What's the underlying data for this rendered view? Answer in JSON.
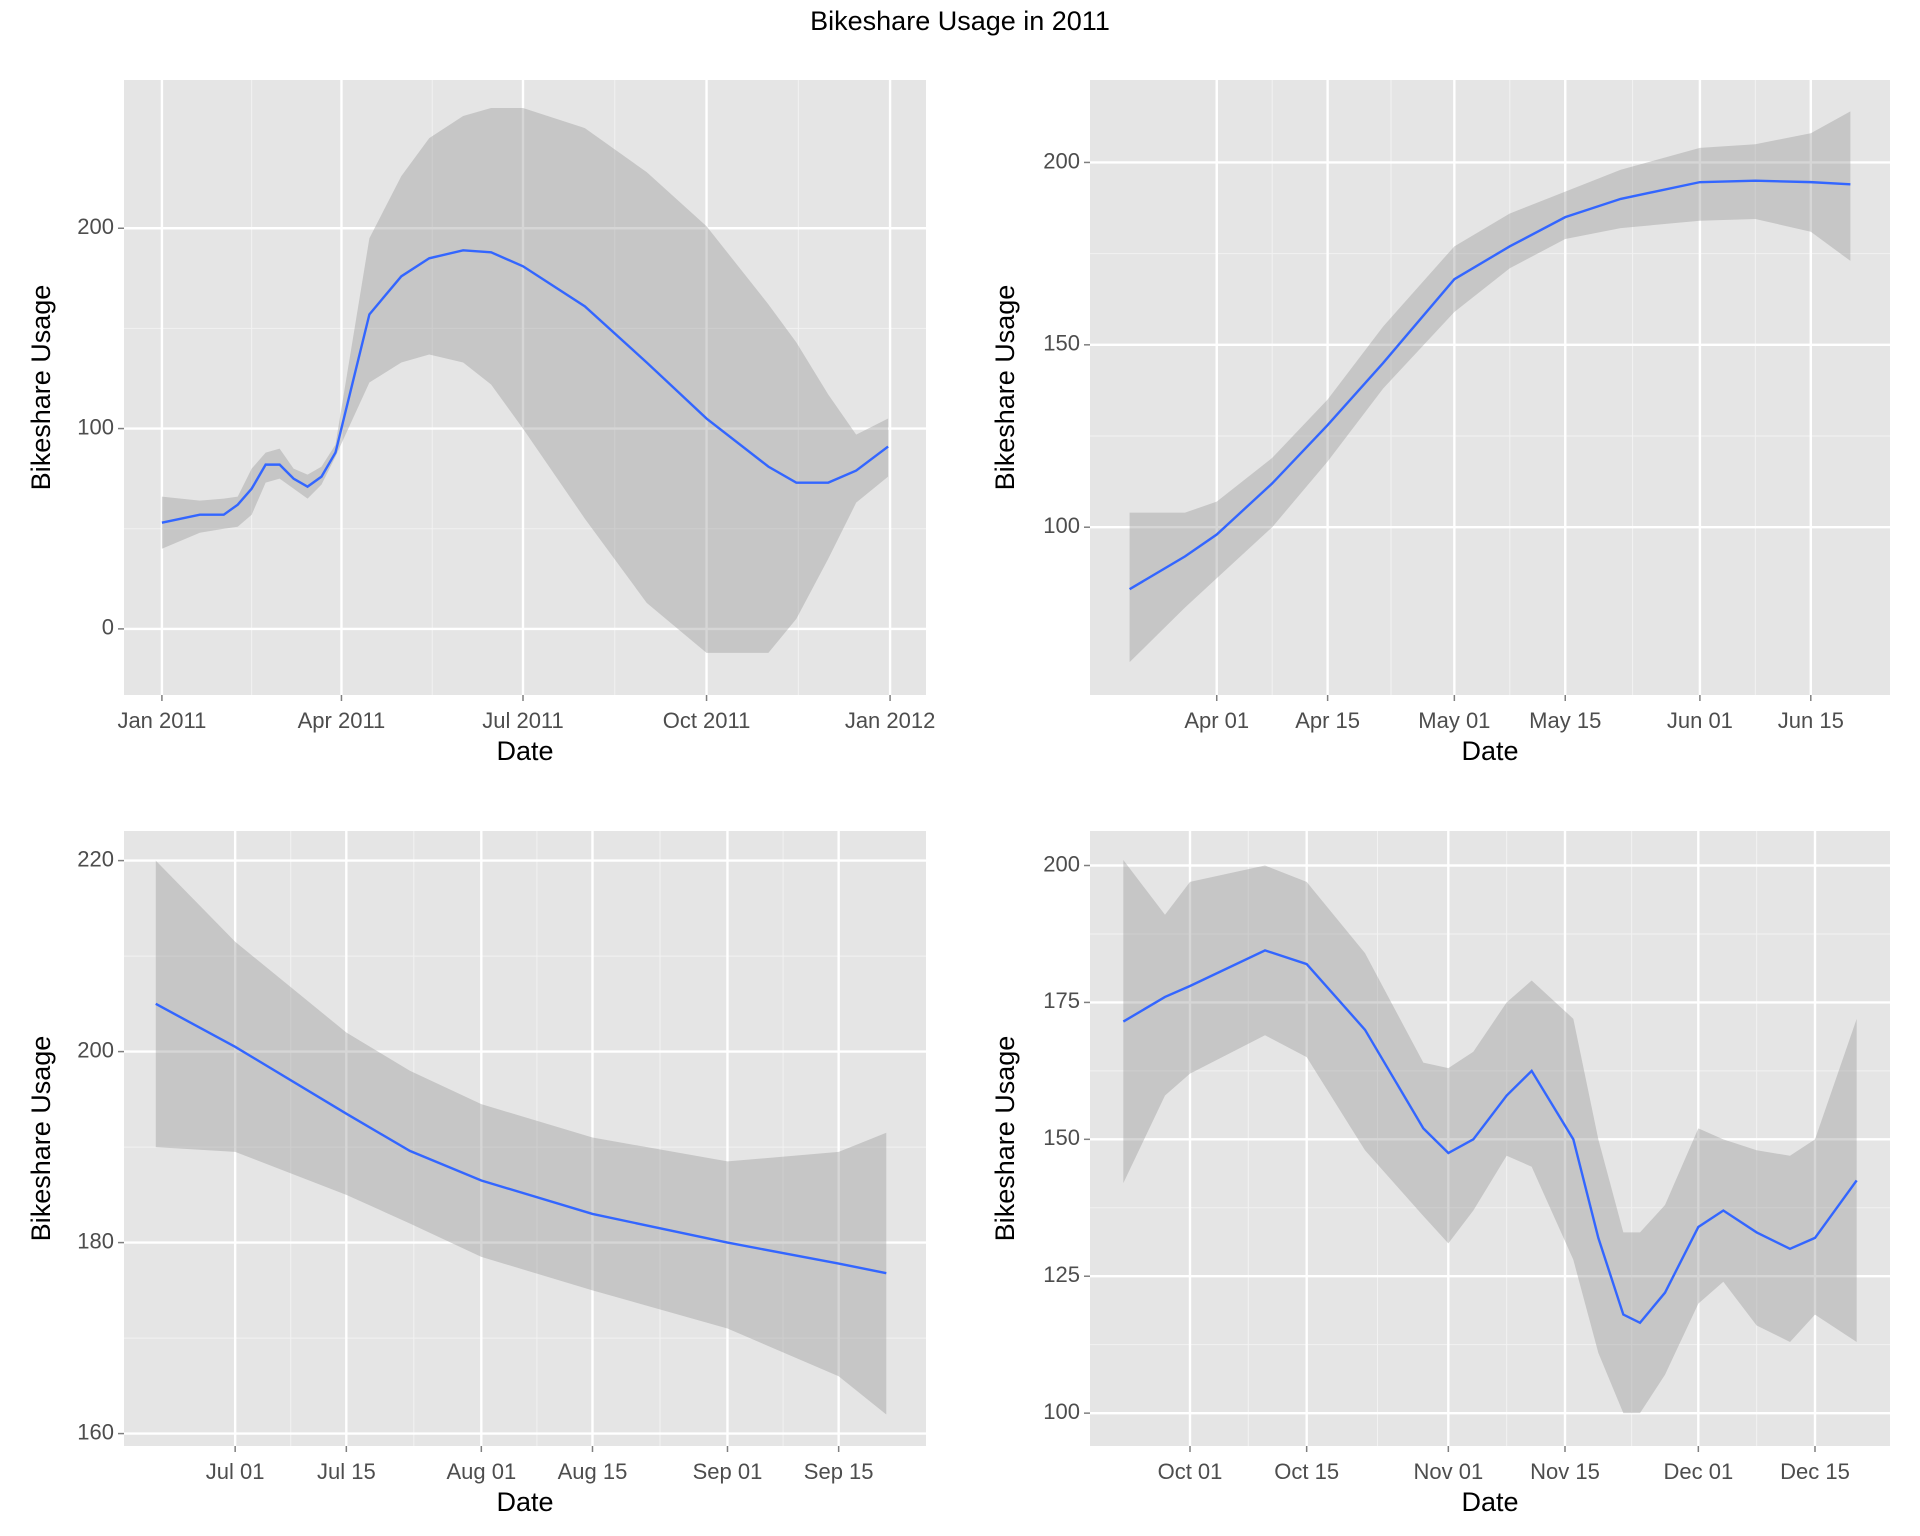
{
  "title": "Bikeshare Usage in 2011",
  "chart_data": [
    {
      "type": "line",
      "xlabel": "Date",
      "ylabel": "Bikeshare Usage",
      "color": "#3366ff",
      "band_color": "#999999",
      "grid": true,
      "x": [
        "2011-01-01",
        "2011-01-20",
        "2011-02-01",
        "2011-02-08",
        "2011-02-15",
        "2011-02-22",
        "2011-03-01",
        "2011-03-08",
        "2011-03-15",
        "2011-03-22",
        "2011-03-29",
        "2011-04-15",
        "2011-05-01",
        "2011-05-15",
        "2011-06-01",
        "2011-06-15",
        "2011-07-01",
        "2011-08-01",
        "2011-09-01",
        "2011-10-01",
        "2011-11-01",
        "2011-11-15",
        "2011-12-01",
        "2011-12-15",
        "2011-12-31"
      ],
      "values": [
        53,
        57,
        57,
        62,
        70,
        82,
        82,
        75,
        71,
        76,
        88,
        157,
        176,
        185,
        189,
        188,
        181,
        161,
        133,
        105,
        81,
        73,
        73,
        79,
        91
      ],
      "lower": [
        40,
        48,
        50,
        51,
        57,
        73,
        75,
        70,
        65,
        72,
        86,
        123,
        133,
        137,
        133,
        122,
        100,
        55,
        13,
        -12,
        -12,
        5,
        35,
        63,
        76
      ],
      "upper": [
        66,
        64,
        65,
        66,
        80,
        88,
        90,
        80,
        77,
        81,
        92,
        195,
        226,
        245,
        256,
        260,
        260,
        250,
        228,
        201,
        162,
        143,
        117,
        97,
        105
      ],
      "xlim": [
        "2010-12-13",
        "2012-01-19"
      ],
      "ylim": [
        -33,
        274
      ],
      "xticks": [
        {
          "value": "2011-01-01",
          "label": "Jan 2011"
        },
        {
          "value": "2011-04-01",
          "label": "Apr 2011"
        },
        {
          "value": "2011-07-01",
          "label": "Jul 2011"
        },
        {
          "value": "2011-10-01",
          "label": "Oct 2011"
        },
        {
          "value": "2012-01-01",
          "label": "Jan 2012"
        }
      ],
      "yticks": [
        0,
        100,
        200
      ]
    },
    {
      "type": "line",
      "xlabel": "Date",
      "ylabel": "Bikeshare Usage",
      "color": "#3366ff",
      "band_color": "#999999",
      "grid": true,
      "x": [
        "2011-03-21",
        "2011-03-28",
        "2011-04-01",
        "2011-04-08",
        "2011-04-15",
        "2011-04-22",
        "2011-05-01",
        "2011-05-08",
        "2011-05-15",
        "2011-05-22",
        "2011-06-01",
        "2011-06-08",
        "2011-06-15",
        "2011-06-20"
      ],
      "values": [
        83,
        92,
        98,
        112,
        128,
        145,
        168,
        177,
        185,
        190,
        194.6,
        195,
        194.6,
        194
      ],
      "lower": [
        63,
        78,
        86,
        100,
        118,
        138,
        159,
        171,
        179,
        182,
        184,
        184.5,
        181,
        173
      ],
      "upper": [
        104,
        104,
        107,
        119,
        135,
        155,
        177,
        186,
        192,
        198,
        204,
        205,
        208,
        214
      ],
      "xlim": [
        "2011-03-16",
        "2011-06-25"
      ],
      "ylim": [
        54,
        222.6
      ],
      "xticks": [
        {
          "value": "2011-04-01",
          "label": "Apr 01"
        },
        {
          "value": "2011-04-15",
          "label": "Apr 15"
        },
        {
          "value": "2011-05-01",
          "label": "May 01"
        },
        {
          "value": "2011-05-15",
          "label": "May 15"
        },
        {
          "value": "2011-06-01",
          "label": "Jun 01"
        },
        {
          "value": "2011-06-15",
          "label": "Jun 15"
        }
      ],
      "yticks": [
        100,
        150,
        200
      ]
    },
    {
      "type": "line",
      "xlabel": "Date",
      "ylabel": "Bikeshare Usage",
      "color": "#3366ff",
      "band_color": "#999999",
      "grid": true,
      "x": [
        "2011-06-21",
        "2011-07-01",
        "2011-07-15",
        "2011-07-23",
        "2011-08-01",
        "2011-08-15",
        "2011-09-01",
        "2011-09-15",
        "2011-09-21"
      ],
      "values": [
        205,
        200.5,
        193.5,
        189.6,
        186.5,
        183,
        180,
        177.8,
        176.8
      ],
      "lower": [
        190,
        189.5,
        185,
        182,
        178.5,
        175,
        171,
        166,
        162
      ],
      "upper": [
        220,
        211.5,
        202,
        198,
        194.5,
        191,
        188.5,
        189.5,
        191.5
      ],
      "xlim": [
        "2011-06-17",
        "2011-09-26"
      ],
      "ylim": [
        158.7,
        223.1
      ],
      "xticks": [
        {
          "value": "2011-07-01",
          "label": "Jul 01"
        },
        {
          "value": "2011-07-15",
          "label": "Jul 15"
        },
        {
          "value": "2011-08-01",
          "label": "Aug 01"
        },
        {
          "value": "2011-08-15",
          "label": "Aug 15"
        },
        {
          "value": "2011-09-01",
          "label": "Sep 01"
        },
        {
          "value": "2011-09-15",
          "label": "Sep 15"
        }
      ],
      "yticks": [
        160,
        180,
        200,
        220
      ]
    },
    {
      "type": "line",
      "xlabel": "Date",
      "ylabel": "Bikeshare Usage",
      "color": "#3366ff",
      "band_color": "#999999",
      "grid": true,
      "x": [
        "2011-09-23",
        "2011-09-28",
        "2011-10-01",
        "2011-10-10",
        "2011-10-15",
        "2011-10-22",
        "2011-10-29",
        "2011-11-01",
        "2011-11-04",
        "2011-11-08",
        "2011-11-11",
        "2011-11-16",
        "2011-11-19",
        "2011-11-22",
        "2011-11-24",
        "2011-11-27",
        "2011-12-01",
        "2011-12-04",
        "2011-12-08",
        "2011-12-12",
        "2011-12-15",
        "2011-12-20"
      ],
      "values": [
        171.5,
        176,
        178,
        184.5,
        182,
        170,
        152,
        147.5,
        150,
        158,
        162.5,
        150,
        132,
        118,
        116.5,
        122,
        134,
        137,
        133,
        130,
        132,
        142.5
      ],
      "lower": [
        142,
        158,
        162,
        169,
        165,
        148,
        136,
        131,
        137,
        147,
        145,
        128,
        111,
        100,
        100,
        107,
        120,
        124,
        116,
        113,
        118,
        113
      ],
      "upper": [
        201,
        191,
        197,
        200,
        197,
        184,
        164,
        163,
        166,
        175,
        179,
        172,
        150,
        133,
        133,
        138,
        152,
        150,
        148,
        147,
        150,
        172
      ],
      "xlim": [
        "2011-09-19",
        "2011-12-24"
      ],
      "ylim": [
        94,
        206.3
      ],
      "xticks": [
        {
          "value": "2011-10-01",
          "label": "Oct 01"
        },
        {
          "value": "2011-10-15",
          "label": "Oct 15"
        },
        {
          "value": "2011-11-01",
          "label": "Nov 01"
        },
        {
          "value": "2011-11-15",
          "label": "Nov 15"
        },
        {
          "value": "2011-12-01",
          "label": "Dec 01"
        },
        {
          "value": "2011-12-15",
          "label": "Dec 15"
        }
      ],
      "yticks": [
        100,
        125,
        150,
        175,
        200
      ]
    }
  ]
}
